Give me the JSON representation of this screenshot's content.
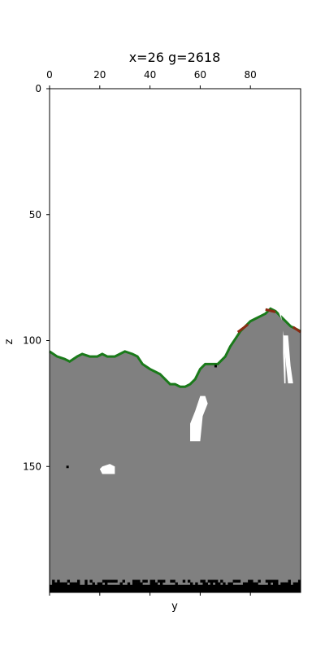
{
  "chart_data": {
    "type": "heatmap",
    "title": "x=26 g=2618",
    "xlabel": "y",
    "ylabel": "z",
    "xlim": [
      0,
      100
    ],
    "ylim": [
      200,
      0
    ],
    "x_axis_position": "top",
    "x_ticks": [
      0,
      20,
      40,
      60,
      80
    ],
    "y_ticks": [
      0,
      50,
      100,
      150
    ],
    "grid": false,
    "colors": {
      "air": "#ffffff",
      "stone": "#808080",
      "grass": "#1a7a1a",
      "dirt": "#8b2a12",
      "bedrock": "#000000"
    },
    "surface_profile": {
      "y": [
        0,
        3,
        6,
        8,
        11,
        13,
        16,
        19,
        21,
        23,
        26,
        28,
        30,
        33,
        35,
        37,
        40,
        42,
        44,
        46,
        48,
        50,
        52,
        54,
        56,
        58,
        60,
        62,
        65,
        67,
        70,
        72,
        74,
        76,
        78,
        80,
        82,
        84,
        86,
        88,
        90,
        92,
        94,
        96,
        98,
        100
      ],
      "z": [
        104,
        106,
        107,
        108,
        106,
        105,
        106,
        106,
        105,
        106,
        106,
        105,
        104,
        105,
        106,
        109,
        111,
        112,
        113,
        115,
        117,
        117,
        118,
        118,
        117,
        115,
        111,
        109,
        109,
        109,
        106,
        102,
        99,
        96,
        94,
        92,
        91,
        90,
        89,
        87,
        88,
        90,
        92,
        94,
        95,
        96
      ]
    },
    "dirt_segments": [
      {
        "y": [
          75,
          79
        ],
        "z": [
          96,
          93
        ]
      },
      {
        "y": [
          86,
          90
        ],
        "z": [
          87,
          88
        ]
      },
      {
        "y": [
          97,
          100
        ],
        "z": [
          94,
          96
        ]
      }
    ],
    "caves": [
      {
        "shape": "poly",
        "points": [
          [
            56,
            140
          ],
          [
            60,
            140
          ],
          [
            61,
            130
          ],
          [
            63,
            125
          ],
          [
            62,
            122
          ],
          [
            60,
            122
          ],
          [
            58,
            128
          ],
          [
            56,
            133
          ]
        ]
      },
      {
        "shape": "poly",
        "points": [
          [
            91,
            88
          ],
          [
            92,
            88
          ],
          [
            93,
            96
          ],
          [
            93,
            105
          ],
          [
            93.5,
            117
          ],
          [
            94,
            117
          ],
          [
            94,
            110
          ],
          [
            93.5,
            100
          ],
          [
            92.5,
            92
          ]
        ]
      },
      {
        "shape": "poly",
        "points": [
          [
            93,
            98
          ],
          [
            95,
            98
          ],
          [
            96,
            110
          ],
          [
            97,
            117
          ],
          [
            95,
            117
          ],
          [
            94,
            108
          ]
        ]
      },
      {
        "shape": "poly",
        "points": [
          [
            21,
            150
          ],
          [
            24,
            149
          ],
          [
            26,
            150
          ],
          [
            26,
            153
          ],
          [
            21,
            153
          ],
          [
            20,
            151
          ]
        ]
      }
    ],
    "ore_blocks": [
      [
        7,
        150
      ],
      [
        66,
        110
      ]
    ],
    "bedrock_rows": [
      195,
      199
    ]
  }
}
